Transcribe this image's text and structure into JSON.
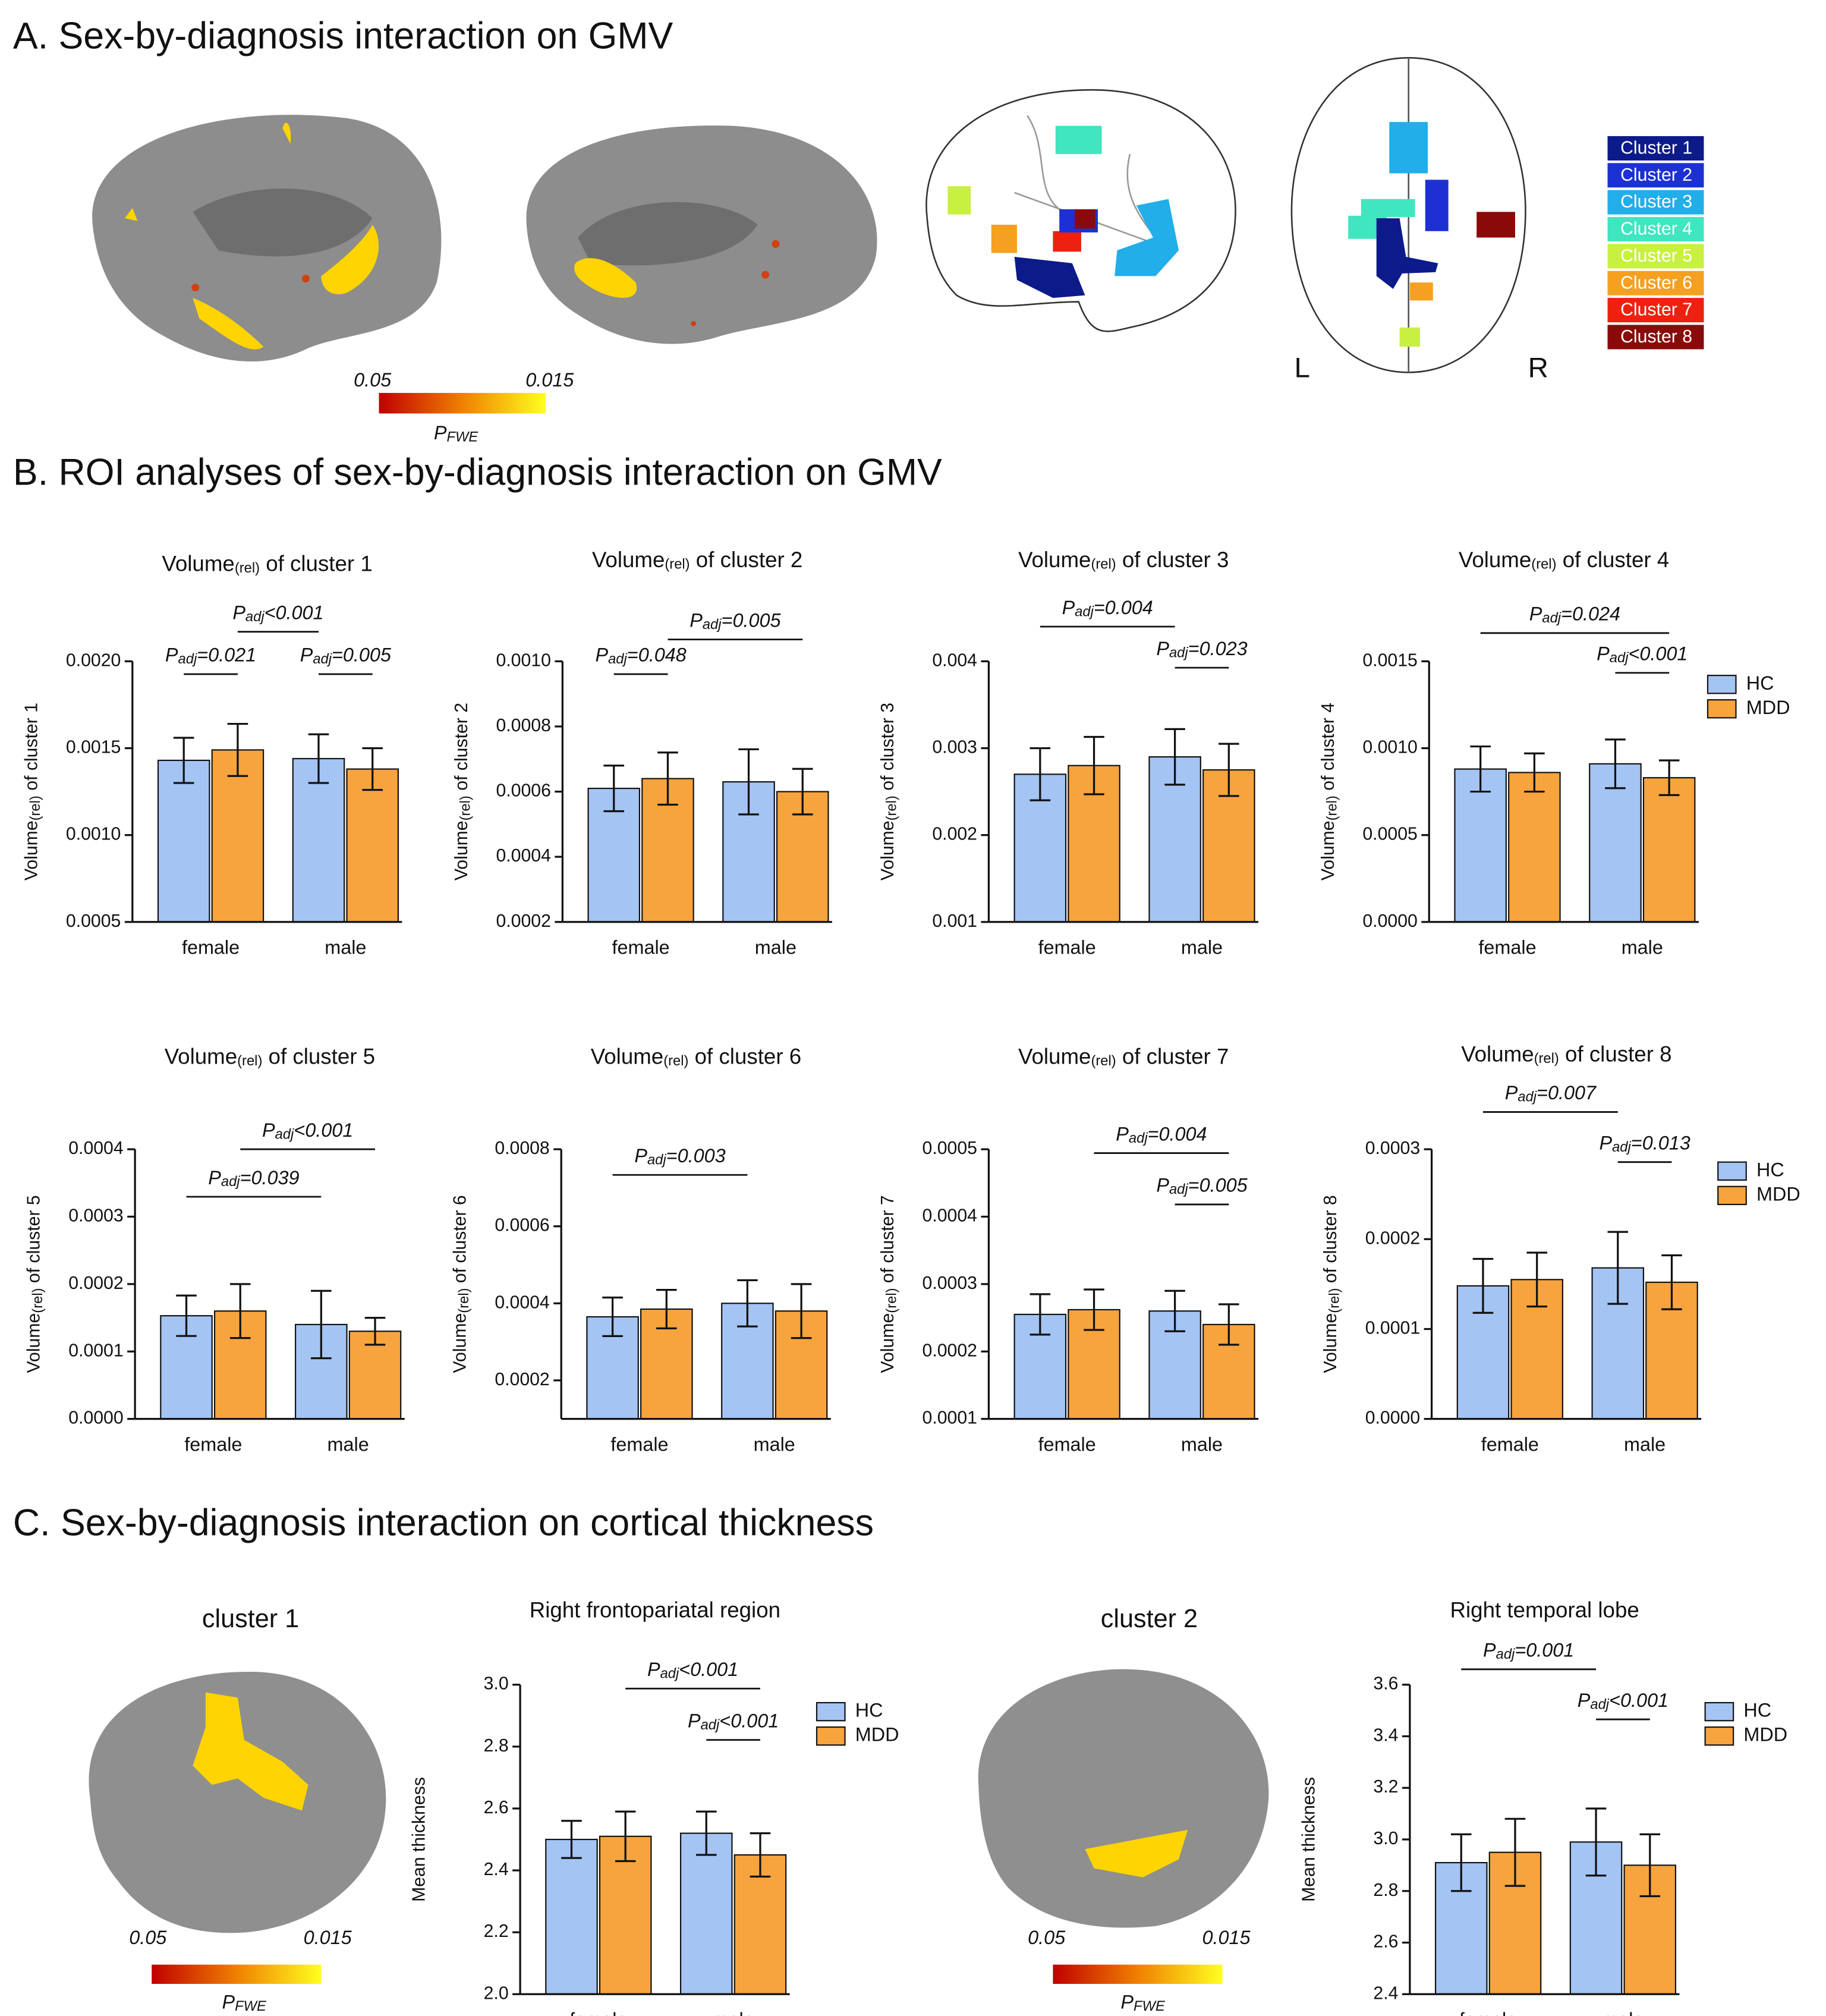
{
  "panel_a": {
    "heading": "A. Sex-by-diagnosis interaction on GMV",
    "colorbar": {
      "min": 0.05,
      "max": 0.015,
      "p": "P",
      "sub": "FWE"
    },
    "clusters": [
      {
        "label": "Cluster 1",
        "color": "#0c1a8a"
      },
      {
        "label": "Cluster 2",
        "color": "#1c30d4"
      },
      {
        "label": "Cluster 3",
        "color": "#22aee8"
      },
      {
        "label": "Cluster 4",
        "color": "#3fe6c0"
      },
      {
        "label": "Cluster 5",
        "color": "#c8f040"
      },
      {
        "label": "Cluster 6",
        "color": "#f5a020"
      },
      {
        "label": "Cluster 7",
        "color": "#ee2010"
      },
      {
        "label": "Cluster 8",
        "color": "#8a0a0a"
      }
    ],
    "left": "L",
    "right": "R"
  },
  "panel_b": {
    "heading": "B. ROI analyses of sex-by-diagnosis interaction on GMV"
  },
  "panel_c": {
    "heading": "C. Sex-by-diagnosis interaction on cortical thickness",
    "brain_labels": [
      "cluster 1",
      "cluster 2"
    ],
    "colorbar": {
      "min": 0.05,
      "max": 0.015,
      "p": "P",
      "sub": "FWE"
    }
  },
  "chart_data": [
    {
      "type": "bar",
      "title": "Volume",
      "title_sub": "(rel)",
      "title_rest": " of cluster 1",
      "ylabel": "Volume",
      "ylabel_sub": "(rel)",
      "ylabel_rest": " of cluster 1",
      "categories": [
        "female",
        "male"
      ],
      "series": [
        {
          "name": "HC",
          "color": "#a4c4f4",
          "values": [
            0.00143,
            0.00144
          ],
          "errors": [
            0.00013,
            0.00014
          ]
        },
        {
          "name": "MDD",
          "color": "#f7a43e",
          "values": [
            0.00149,
            0.00138
          ],
          "errors": [
            0.00015,
            0.00012
          ]
        }
      ],
      "ylim": [
        0.0005,
        0.002
      ],
      "yticks": [
        0.0005,
        {
          "value": 0.001,
          "label": "0.0010"
        },
        0.0015,
        {
          "value": 0.002,
          "label": "0.0020"
        }
      ],
      "annotations": [
        {
          "p": "P",
          "sub": "adj",
          "rest": "=0.021"
        },
        {
          "p": "P",
          "sub": "adj",
          "rest": "<0.001"
        },
        {
          "p": "P",
          "sub": "adj",
          "rest": "=0.005"
        }
      ],
      "legend": false
    },
    {
      "type": "bar",
      "title": "Volume",
      "title_sub": "(rel)",
      "title_rest": " of cluster 2",
      "ylabel": "Volume",
      "ylabel_sub": "(rel)",
      "ylabel_rest": " of cluster 2",
      "categories": [
        "female",
        "male"
      ],
      "series": [
        {
          "name": "HC",
          "color": "#a4c4f4",
          "values": [
            0.00061,
            0.00063
          ],
          "errors": [
            7e-05,
            0.0001
          ]
        },
        {
          "name": "MDD",
          "color": "#f7a43e",
          "values": [
            0.00064,
            0.0006
          ],
          "errors": [
            8e-05,
            7e-05
          ]
        }
      ],
      "ylim": [
        0.0002,
        0.001
      ],
      "yticks": [
        0.0002,
        0.0004,
        0.0006,
        0.0008,
        {
          "value": 0.001,
          "label": "0.0010"
        }
      ],
      "annotations": [
        {
          "p": "P",
          "sub": "adj",
          "rest": "=0.048"
        },
        {
          "p": "P",
          "sub": "adj",
          "rest": "=0.005"
        }
      ],
      "legend": false
    },
    {
      "type": "bar",
      "title": "Volume",
      "title_sub": "(rel)",
      "title_rest": " of cluster 3",
      "ylabel": "Volume",
      "ylabel_sub": "(rel)",
      "ylabel_rest": " of cluster 3",
      "categories": [
        "female",
        "male"
      ],
      "series": [
        {
          "name": "HC",
          "color": "#a4c4f4",
          "values": [
            0.0027,
            0.0029
          ],
          "errors": [
            0.0003,
            0.00032
          ]
        },
        {
          "name": "MDD",
          "color": "#f7a43e",
          "values": [
            0.0028,
            0.00275
          ],
          "errors": [
            0.00033,
            0.0003
          ]
        }
      ],
      "ylim": [
        0.001,
        0.004
      ],
      "yticks": [
        0.001,
        0.002,
        0.003,
        0.004
      ],
      "annotations": [
        {
          "p": "P",
          "sub": "adj",
          "rest": "=0.004"
        },
        {
          "p": "P",
          "sub": "adj",
          "rest": "=0.023"
        }
      ],
      "legend": false
    },
    {
      "type": "bar",
      "title": "Volume",
      "title_sub": "(rel)",
      "title_rest": " of cluster 4",
      "ylabel": "Volume",
      "ylabel_sub": "(rel)",
      "ylabel_rest": " of cluster 4",
      "categories": [
        "female",
        "male"
      ],
      "series": [
        {
          "name": "HC",
          "color": "#a4c4f4",
          "values": [
            0.00088,
            0.00091
          ],
          "errors": [
            0.00013,
            0.00014
          ]
        },
        {
          "name": "MDD",
          "color": "#f7a43e",
          "values": [
            0.00086,
            0.00083
          ],
          "errors": [
            0.00011,
            0.0001
          ]
        }
      ],
      "ylim": [
        0,
        0.0015
      ],
      "yticks": [
        {
          "value": 0,
          "label": "0.0000"
        },
        0.0005,
        {
          "value": 0.001,
          "label": "0.0010"
        },
        0.0015
      ],
      "annotations": [
        {
          "p": "P",
          "sub": "adj",
          "rest": "=0.024"
        },
        {
          "p": "P",
          "sub": "adj",
          "rest": "<0.001"
        }
      ],
      "legend": true
    },
    {
      "type": "bar",
      "title": "Volume",
      "title_sub": "(rel)",
      "title_rest": " of cluster 5",
      "ylabel": "Volume",
      "ylabel_sub": "(rel)",
      "ylabel_rest": " of cluster 5",
      "categories": [
        "female",
        "male"
      ],
      "series": [
        {
          "name": "HC",
          "color": "#a4c4f4",
          "values": [
            0.000153,
            0.00014
          ],
          "errors": [
            3e-05,
            5e-05
          ]
        },
        {
          "name": "MDD",
          "color": "#f7a43e",
          "values": [
            0.00016,
            0.00013
          ],
          "errors": [
            4e-05,
            2e-05
          ]
        }
      ],
      "ylim": [
        0,
        0.0004
      ],
      "yticks": [
        {
          "value": 0,
          "label": "0.0000"
        },
        0.0001,
        0.0002,
        0.0003,
        0.0004
      ],
      "annotations": [
        {
          "p": "P",
          "sub": "adj",
          "rest": "<0.001"
        },
        {
          "p": "P",
          "sub": "adj",
          "rest": "=0.039"
        }
      ],
      "legend": false
    },
    {
      "type": "bar",
      "title": "Volume",
      "title_sub": "(rel)",
      "title_rest": " of cluster 6",
      "ylabel": "Volume",
      "ylabel_sub": "(rel)",
      "ylabel_rest": " of cluster 6",
      "categories": [
        "female",
        "male"
      ],
      "series": [
        {
          "name": "HC",
          "color": "#a4c4f4",
          "values": [
            0.000365,
            0.0004
          ],
          "errors": [
            5e-05,
            6e-05
          ]
        },
        {
          "name": "MDD",
          "color": "#f7a43e",
          "values": [
            0.000385,
            0.00038
          ],
          "errors": [
            5e-05,
            7e-05
          ]
        }
      ],
      "ylim": [
        0.0001,
        0.0008
      ],
      "yticks": [
        0.0002,
        0.0004,
        0.0006,
        0.0008
      ],
      "annotations": [
        {
          "p": "P",
          "sub": "adj",
          "rest": "=0.003"
        }
      ],
      "legend": false
    },
    {
      "type": "bar",
      "title": "Volume",
      "title_sub": "(rel)",
      "title_rest": " of cluster 7",
      "ylabel": "Volume",
      "ylabel_sub": "(rel)",
      "ylabel_rest": " of cluster 7",
      "categories": [
        "female",
        "male"
      ],
      "series": [
        {
          "name": "HC",
          "color": "#a4c4f4",
          "values": [
            0.000255,
            0.00026
          ],
          "errors": [
            3e-05,
            3e-05
          ]
        },
        {
          "name": "MDD",
          "color": "#f7a43e",
          "values": [
            0.000262,
            0.00024
          ],
          "errors": [
            3e-05,
            3e-05
          ]
        }
      ],
      "ylim": [
        0.0001,
        0.0005
      ],
      "yticks": [
        0.0001,
        0.0002,
        0.0003,
        0.0004,
        0.0005
      ],
      "annotations": [
        {
          "p": "P",
          "sub": "adj",
          "rest": "=0.004"
        },
        {
          "p": "P",
          "sub": "adj",
          "rest": "=0.005"
        }
      ],
      "legend": false
    },
    {
      "type": "bar",
      "title": "Volume",
      "title_sub": "(rel)",
      "title_rest": " of cluster 8",
      "ylabel": "Volume",
      "ylabel_sub": "(rel)",
      "ylabel_rest": " of cluster 8",
      "categories": [
        "female",
        "male"
      ],
      "series": [
        {
          "name": "HC",
          "color": "#a4c4f4",
          "values": [
            0.000148,
            0.000168
          ],
          "errors": [
            3e-05,
            4e-05
          ]
        },
        {
          "name": "MDD",
          "color": "#f7a43e",
          "values": [
            0.000155,
            0.000152
          ],
          "errors": [
            3e-05,
            3e-05
          ]
        }
      ],
      "ylim": [
        0,
        0.0003
      ],
      "yticks": [
        {
          "value": 0,
          "label": "0.0000"
        },
        0.0001,
        0.0002,
        0.0003
      ],
      "annotations": [
        {
          "p": "P",
          "sub": "adj",
          "rest": "=0.007"
        },
        {
          "p": "P",
          "sub": "adj",
          "rest": "=0.013"
        }
      ],
      "legend": true
    },
    {
      "type": "bar",
      "title": "Right frontopariatal region",
      "ylabel": "Mean thickness",
      "categories": [
        "female",
        "male"
      ],
      "series": [
        {
          "name": "HC",
          "color": "#a4c4f4",
          "values": [
            2.5,
            2.52
          ],
          "errors": [
            0.06,
            0.07
          ]
        },
        {
          "name": "MDD",
          "color": "#f7a43e",
          "values": [
            2.51,
            2.45
          ],
          "errors": [
            0.08,
            0.07
          ]
        }
      ],
      "ylim": [
        2.0,
        3.0
      ],
      "yticks": [
        {
          "value": 2.0,
          "label": "2.0"
        },
        2.2,
        2.4,
        2.6,
        2.8,
        {
          "value": 3.0,
          "label": "3.0"
        }
      ],
      "annotations": [
        {
          "p": "P",
          "sub": "adj",
          "rest": "<0.001"
        },
        {
          "p": "P",
          "sub": "adj",
          "rest": "<0.001"
        }
      ],
      "legend": true
    },
    {
      "type": "bar",
      "title": "Right temporal lobe",
      "ylabel": "Mean thickness",
      "categories": [
        "female",
        "male"
      ],
      "series": [
        {
          "name": "HC",
          "color": "#a4c4f4",
          "values": [
            2.91,
            2.99
          ],
          "errors": [
            0.11,
            0.13
          ]
        },
        {
          "name": "MDD",
          "color": "#f7a43e",
          "values": [
            2.95,
            2.9
          ],
          "errors": [
            0.13,
            0.12
          ]
        }
      ],
      "ylim": [
        2.4,
        3.6
      ],
      "yticks": [
        2.4,
        2.6,
        2.8,
        {
          "value": 3.0,
          "label": "3.0"
        },
        3.2,
        3.4,
        3.6
      ],
      "annotations": [
        {
          "p": "P",
          "sub": "adj",
          "rest": "=0.001"
        },
        {
          "p": "P",
          "sub": "adj",
          "rest": "<0.001"
        }
      ],
      "legend": true
    }
  ]
}
